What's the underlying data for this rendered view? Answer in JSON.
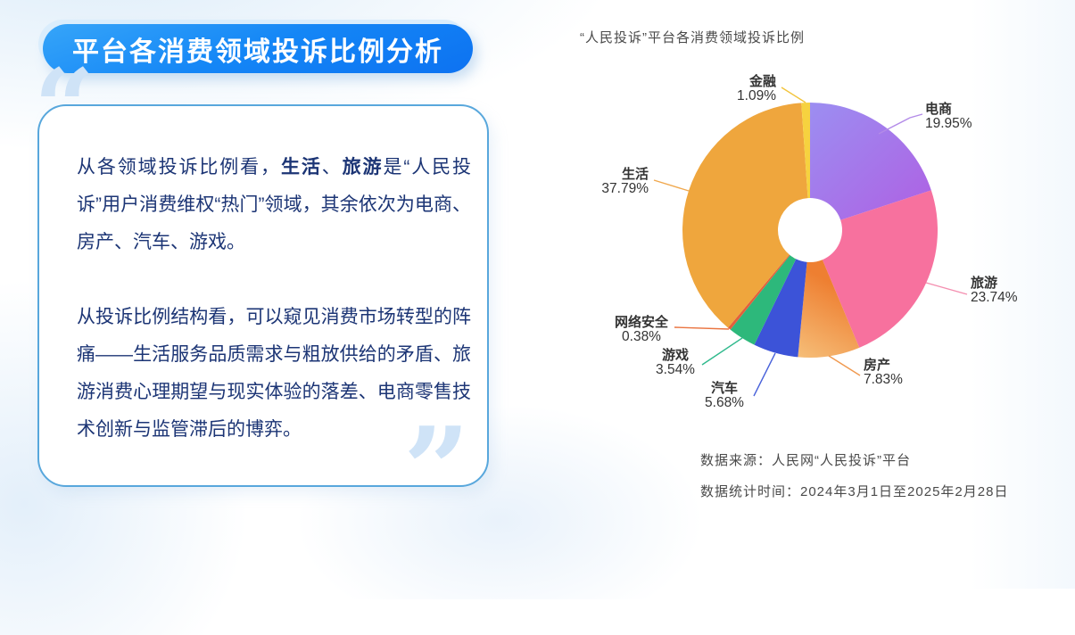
{
  "header": {
    "title": "平台各消费领域投诉比例分析"
  },
  "decor": {
    "open_quote": "“",
    "close_quote": "”"
  },
  "panel": {
    "paragraph1": [
      {
        "t": "从各领域投诉比例看，"
      },
      {
        "t": "生活",
        "b": 1
      },
      {
        "t": "、"
      },
      {
        "t": "旅游",
        "b": 1
      },
      {
        "t": "是“人民投诉”用户消费维权“热门”领域，其余依次为电商、房产、汽车、游戏。"
      }
    ],
    "paragraph2": [
      {
        "t": "从投诉比例结构看，可以窥见消费市场转型的阵痛——生活服务品质需求与粗放供给的矛盾、旅游消费心理期望与现实体验的落差、电商零售技术创新与监管滞后的博弈。"
      }
    ]
  },
  "chart": {
    "title": "“人民投诉”平台各消费领域投诉比例",
    "source_line1": "数据来源：人民网“人民投诉”平台",
    "source_line2": "数据统计时间：2024年3月1日至2025年2月28日"
  },
  "chart_data": {
    "type": "pie",
    "donut": true,
    "title": "“人民投诉”平台各消费领域投诉比例",
    "unit": "%",
    "start_angle_deg": 0,
    "direction": "clockwise",
    "label_color": "#333333",
    "slices": [
      {
        "name": "电商",
        "slug": "ecommerce",
        "value": 19.95,
        "color": "#9B90F2",
        "color2": "#B257E0",
        "line_color": "#B38BE8"
      },
      {
        "name": "旅游",
        "slug": "travel",
        "value": 23.74,
        "color": "#F7719E",
        "line_color": "#F48FB0"
      },
      {
        "name": "房产",
        "slug": "real-estate",
        "value": 7.83,
        "color": "#F8D18E",
        "color2": "#EE7F31",
        "line_color": "#F0994F"
      },
      {
        "name": "汽车",
        "slug": "auto",
        "value": 5.68,
        "color": "#3C53D8",
        "line_color": "#4A63DB"
      },
      {
        "name": "游戏",
        "slug": "games",
        "value": 3.54,
        "color": "#2DB87B",
        "line_color": "#2FB98C"
      },
      {
        "name": "网络安全",
        "slug": "cybersecurity",
        "value": 0.38,
        "color": "#E2603C",
        "line_color": "#EA7440"
      },
      {
        "name": "生活",
        "slug": "life",
        "value": 37.79,
        "color": "#EFA63D",
        "line_color": "#F0A84E"
      },
      {
        "name": "金融",
        "slug": "finance",
        "value": 1.09,
        "color": "#F6D23F",
        "line_color": "#F2C43B"
      }
    ]
  }
}
